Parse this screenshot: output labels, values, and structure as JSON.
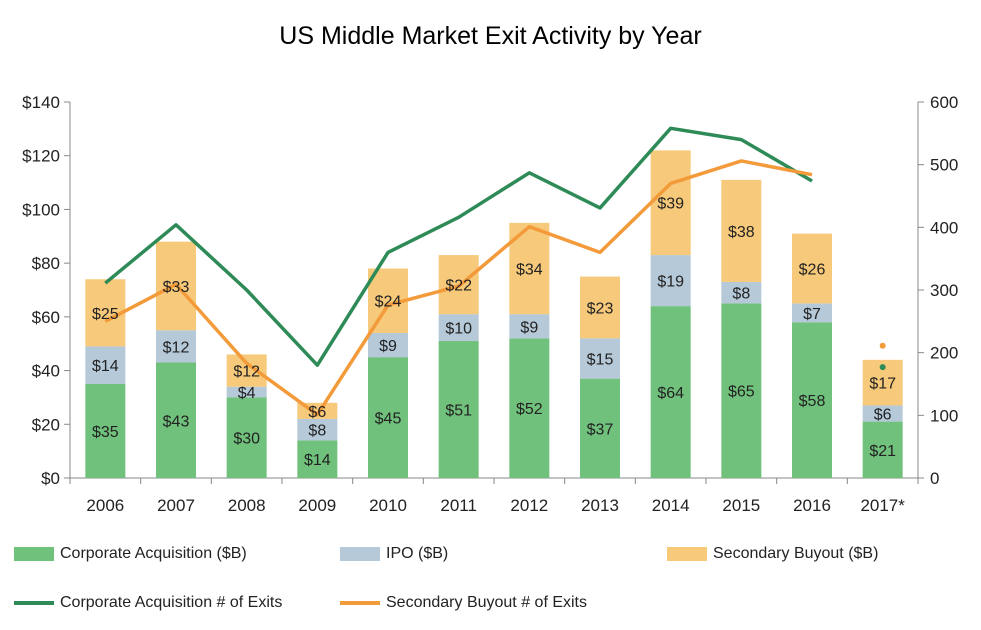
{
  "chart_data": {
    "type": "bar",
    "title": "US Middle Market Exit Activity by Year",
    "categories": [
      "2006",
      "2007",
      "2008",
      "2009",
      "2010",
      "2011",
      "2012",
      "2013",
      "2014",
      "2015",
      "2016",
      "2017*"
    ],
    "left_axis": {
      "ylim": [
        0,
        140
      ],
      "ticks": [
        "$0",
        "$20",
        "$40",
        "$60",
        "$80",
        "$100",
        "$120",
        "$140"
      ],
      "tick_values": [
        0,
        20,
        40,
        60,
        80,
        100,
        120,
        140
      ]
    },
    "right_axis": {
      "ylim": [
        0,
        600
      ],
      "ticks": [
        "0",
        "100",
        "200",
        "300",
        "400",
        "500",
        "600"
      ],
      "tick_values": [
        0,
        100,
        200,
        300,
        400,
        500,
        600
      ]
    },
    "stacked_series": [
      {
        "name": "Corporate Acquisition ($B)",
        "color": "#70c17c",
        "values": [
          35,
          43,
          30,
          14,
          45,
          51,
          52,
          37,
          64,
          65,
          58,
          21
        ],
        "labels": [
          "$35",
          "$43",
          "$30",
          "$14",
          "$45",
          "$51",
          "$52",
          "$37",
          "$64",
          "$65",
          "$58",
          "$21"
        ]
      },
      {
        "name": "IPO ($B)",
        "color": "#b5c9d8",
        "values": [
          14,
          12,
          4,
          8,
          9,
          10,
          9,
          15,
          19,
          8,
          7,
          6
        ],
        "labels": [
          "$14",
          "$12",
          "$4",
          "$8",
          "$9",
          "$10",
          "$9",
          "$15",
          "$19",
          "$8",
          "$7",
          "$6"
        ]
      },
      {
        "name": "Secondary Buyout ($B)",
        "color": "#f7c97a",
        "values": [
          25,
          33,
          12,
          6,
          24,
          22,
          34,
          23,
          39,
          38,
          26,
          17
        ],
        "labels": [
          "$25",
          "$33",
          "$12",
          "$6",
          "$24",
          "$22",
          "$34",
          "$23",
          "$39",
          "$38",
          "$26",
          "$17"
        ]
      }
    ],
    "line_series": [
      {
        "name": "Corporate Acquisition # of Exits",
        "color": "#2e8b57",
        "axis": "right",
        "values": [
          311,
          404,
          300,
          180,
          360,
          416,
          487,
          431,
          558,
          540,
          474
        ],
        "partial_point": 177
      },
      {
        "name": "Secondary Buyout # of Exits",
        "color": "#f39a3a",
        "axis": "right",
        "values": [
          250,
          309,
          183,
          101,
          276,
          306,
          401,
          360,
          470,
          506,
          484
        ],
        "partial_point": 211
      }
    ],
    "grid": false,
    "legend_position": "bottom"
  }
}
